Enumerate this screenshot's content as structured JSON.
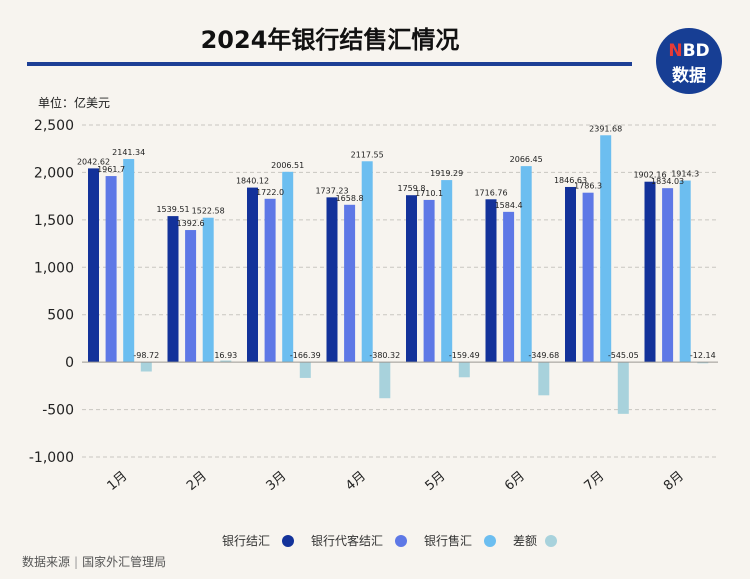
{
  "header": {
    "title": "2024年银行结售汇情况",
    "logo_top_n": "N",
    "logo_top_rest": "BD",
    "logo_bottom": "数据"
  },
  "unit_label": "单位：亿美元",
  "source": {
    "label": "数据来源",
    "org": "国家外汇管理局"
  },
  "colors": {
    "series": [
      "#13329a",
      "#5e78e6",
      "#6cbef0",
      "#a8d2dc"
    ],
    "title_rule": "#1d3f95"
  },
  "chart_data": {
    "type": "bar",
    "title": "2024年银行结售汇情况",
    "ylabel": "单位：亿美元",
    "xlabel": "",
    "ylim": [
      -1000,
      2500
    ],
    "yticks": [
      -1000,
      -500,
      0,
      500,
      1000,
      1500,
      2000,
      2500
    ],
    "ytick_labels": [
      "-1,000",
      "-500",
      "0",
      "500",
      "1,000",
      "1,500",
      "2,000",
      "2,500"
    ],
    "grid": "horizontal dashed",
    "legend_position": "bottom",
    "categories": [
      "1月",
      "2月",
      "3月",
      "4月",
      "5月",
      "6月",
      "7月",
      "8月"
    ],
    "series": [
      {
        "name": "银行结汇",
        "values": [
          2042.62,
          1539.51,
          1840.12,
          1737.23,
          1759.8,
          1716.76,
          1846.63,
          1902.16
        ],
        "labels": [
          "2042.62",
          "1539.51",
          "1840.12",
          "1737.23",
          "1759.8",
          "1716.76",
          "1846.63",
          "1902.16"
        ]
      },
      {
        "name": "银行代客结汇",
        "values": [
          1961.7,
          1392.6,
          1722.0,
          1658.8,
          1710.1,
          1584.4,
          1786.3,
          1834.03
        ],
        "labels": [
          "1961.7",
          "1392.6",
          "1722.0",
          "1658.8",
          "1710.1",
          "1584.4",
          "1786.3",
          "1834.03"
        ]
      },
      {
        "name": "银行售汇",
        "values": [
          2141.34,
          1522.58,
          2006.51,
          2117.55,
          1919.29,
          2066.45,
          2391.68,
          1914.3
        ],
        "labels": [
          "2141.34",
          "1522.58",
          "2006.51",
          "2117.55",
          "1919.29",
          "2066.45",
          "2391.68",
          "1914.3"
        ]
      },
      {
        "name": "差额",
        "values": [
          -98.72,
          16.93,
          -166.39,
          -380.32,
          -159.49,
          -349.68,
          -545.05,
          -12.14
        ],
        "labels": [
          "-98.72",
          "16.93",
          "-166.39",
          "-380.32",
          "-159.49",
          "-349.68",
          "-545.05",
          "-12.14"
        ]
      }
    ]
  }
}
